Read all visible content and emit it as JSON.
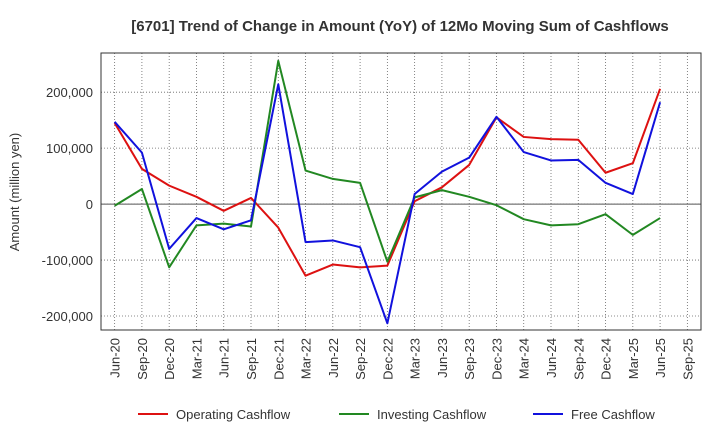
{
  "chart_data": {
    "type": "line",
    "title": "[6701]  Trend of Change in Amount (YoY) of 12Mo Moving Sum of Cashflows",
    "xlabel": "",
    "ylabel": "Amount (million yen)",
    "ylim": [
      -225000,
      270000
    ],
    "yticks": [
      -200000,
      -100000,
      0,
      100000,
      200000
    ],
    "ytick_labels": [
      "-200,000",
      "-100,000",
      "0",
      "100,000",
      "200,000"
    ],
    "categories": [
      "Jun-20",
      "Sep-20",
      "Dec-20",
      "Mar-21",
      "Jun-21",
      "Sep-21",
      "Dec-21",
      "Mar-22",
      "Jun-22",
      "Sep-22",
      "Dec-22",
      "Mar-23",
      "Jun-23",
      "Sep-23",
      "Dec-23",
      "Mar-24",
      "Jun-24",
      "Sep-24",
      "Dec-24",
      "Mar-25",
      "Jun-25",
      "Sep-25"
    ],
    "grid": true,
    "legend_position": "bottom",
    "series": [
      {
        "name": "Operating Cashflow",
        "color": "#dd1111",
        "values": [
          145000,
          63000,
          33000,
          13000,
          -12000,
          11000,
          -42000,
          -128000,
          -108000,
          -113000,
          -110000,
          5000,
          30000,
          70000,
          155000,
          120000,
          116000,
          115000,
          56000,
          73000,
          206000,
          null
        ]
      },
      {
        "name": "Investing Cashflow",
        "color": "#228822",
        "values": [
          -3000,
          27000,
          -113000,
          -38000,
          -35000,
          -40000,
          256000,
          60000,
          45000,
          38000,
          -103000,
          12000,
          25000,
          13000,
          -2000,
          -27000,
          -38000,
          -36000,
          -18000,
          -55000,
          -25000,
          null
        ]
      },
      {
        "name": "Free Cashflow",
        "color": "#1111dd",
        "values": [
          147000,
          92000,
          -80000,
          -25000,
          -45000,
          -29000,
          214000,
          -68000,
          -65000,
          -77000,
          -213000,
          18000,
          58000,
          83000,
          156000,
          93000,
          78000,
          79000,
          38000,
          18000,
          182000,
          null
        ]
      }
    ]
  }
}
